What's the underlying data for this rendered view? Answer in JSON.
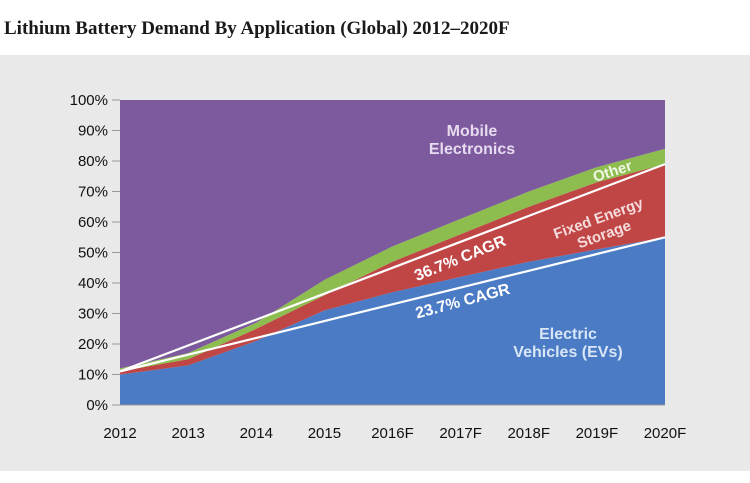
{
  "chart_data": {
    "type": "area",
    "stacked": true,
    "title": "Lithium Battery Demand By Application (Global) 2012–2020F",
    "categories": [
      "2012",
      "2013",
      "2014",
      "2015",
      "2016F",
      "2017F",
      "2018F",
      "2019F",
      "2020F"
    ],
    "yticks": [
      "0%",
      "10%",
      "20%",
      "30%",
      "40%",
      "50%",
      "60%",
      "70%",
      "80%",
      "90%",
      "100%"
    ],
    "ylim": [
      0,
      100
    ],
    "grid": false,
    "series": [
      {
        "name": "Electric Vehicles (EVs)",
        "color": "#4a7bc4",
        "values": [
          10,
          13,
          21,
          31,
          37,
          42,
          47,
          51,
          55
        ]
      },
      {
        "name": "Fixed Energy Storage",
        "color": "#c04646",
        "values": [
          1,
          2,
          4,
          5,
          10,
          14,
          18,
          22,
          24
        ]
      },
      {
        "name": "Other",
        "color": "#8dbd4e",
        "values": [
          1,
          2,
          2,
          5,
          5,
          5,
          5,
          5,
          5
        ]
      },
      {
        "name": "Mobile Electronics",
        "color": "#7d5a9e",
        "values": [
          88,
          83,
          73,
          59,
          48,
          39,
          30,
          22,
          16
        ]
      }
    ],
    "trendlines": [
      {
        "label": "23.7% CAGR",
        "values": [
          11,
          16.5,
          22,
          27.5,
          33,
          38.5,
          44,
          49.5,
          55
        ]
      },
      {
        "label": "36.7% CAGR",
        "values": [
          11,
          19.5,
          28,
          36.5,
          45,
          53.5,
          62,
          70.5,
          79
        ]
      }
    ],
    "labels": {
      "mobile": [
        "Mobile",
        "Electronics"
      ],
      "ev": [
        "Electric",
        "Vehicles (EVs)"
      ],
      "fixed": [
        "Fixed Energy",
        "Storage"
      ],
      "other": "Other",
      "cagr_high": "36.7% CAGR",
      "cagr_low": "23.7% CAGR"
    }
  }
}
